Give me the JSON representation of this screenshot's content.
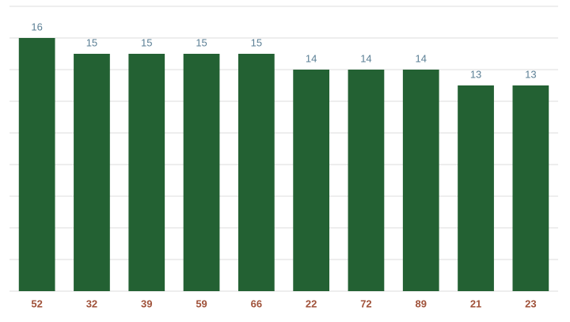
{
  "chart_data": {
    "type": "bar",
    "categories": [
      "52",
      "32",
      "39",
      "59",
      "66",
      "22",
      "72",
      "89",
      "21",
      "23"
    ],
    "values": [
      16,
      15,
      15,
      15,
      15,
      14,
      14,
      14,
      13,
      13
    ],
    "color": "#236133",
    "ylim": [
      0,
      18
    ],
    "yticks": [
      0,
      2,
      4,
      6,
      8,
      10,
      12,
      14,
      16,
      18
    ],
    "grid": true
  }
}
